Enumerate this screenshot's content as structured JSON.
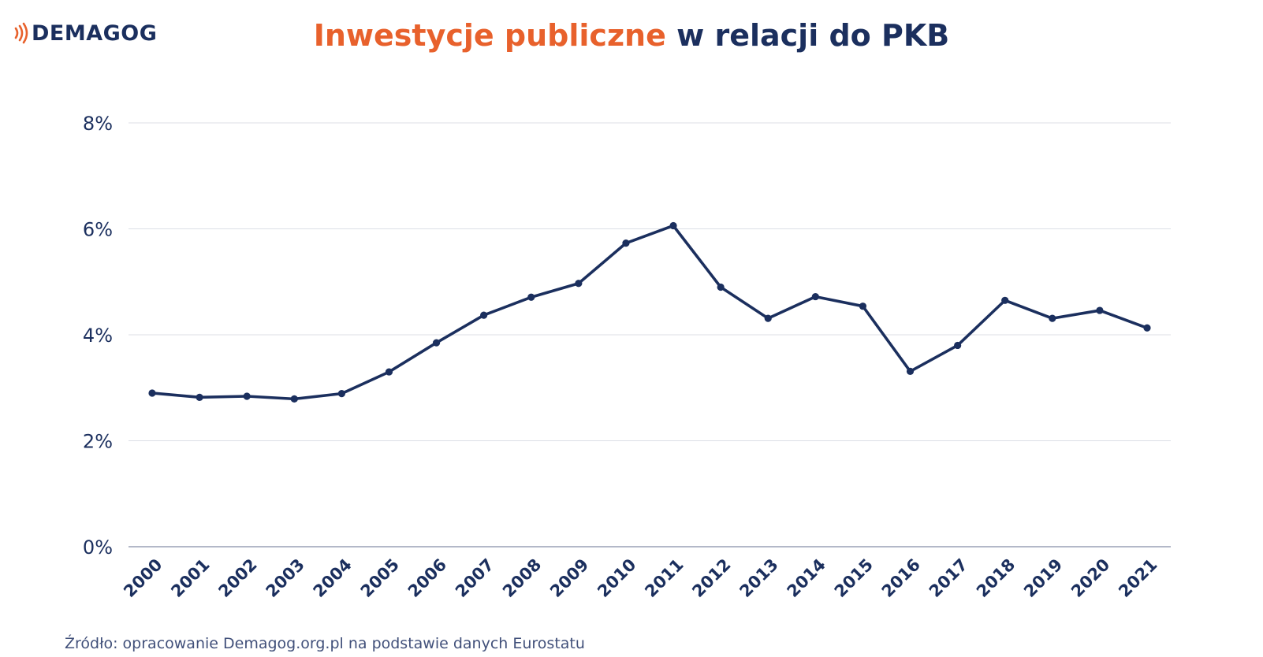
{
  "logo": {
    "text": "DEMAGOG",
    "icon": "sound-waves-icon",
    "icon_color": "#e8612c"
  },
  "title": {
    "accent": "Inwestycje publiczne",
    "rest": "w relacji do PKB"
  },
  "colors": {
    "accent": "#e8612c",
    "brand": "#1b2f5e",
    "line": "#1b2f5e",
    "grid": "#dcdfe6",
    "baseline": "#9aa0b5"
  },
  "chart_data": {
    "type": "line",
    "title": "Inwestycje publiczne w relacji do PKB",
    "xlabel": "",
    "ylabel": "",
    "categories": [
      "2000",
      "2001",
      "2002",
      "2003",
      "2004",
      "2005",
      "2006",
      "2007",
      "2008",
      "2009",
      "2010",
      "2011",
      "2012",
      "2013",
      "2014",
      "2015",
      "2016",
      "2017",
      "2018",
      "2019",
      "2020",
      "2021"
    ],
    "series": [
      {
        "values": [
          2.9,
          2.82,
          2.84,
          2.79,
          2.89,
          3.3,
          3.85,
          4.37,
          4.71,
          4.97,
          5.73,
          6.06,
          4.9,
          4.31,
          4.72,
          4.54,
          3.31,
          3.8,
          4.65,
          4.31,
          4.46,
          4.13
        ]
      }
    ],
    "ylim": [
      0,
      8
    ],
    "y_ticks": [
      0,
      2,
      4,
      6,
      8
    ],
    "y_tick_labels": [
      "0%",
      "2%",
      "4%",
      "6%",
      "8%"
    ],
    "grid": true,
    "legend": "none"
  },
  "source": "Źródło: opracowanie Demagog.org.pl na podstawie danych Eurostatu"
}
